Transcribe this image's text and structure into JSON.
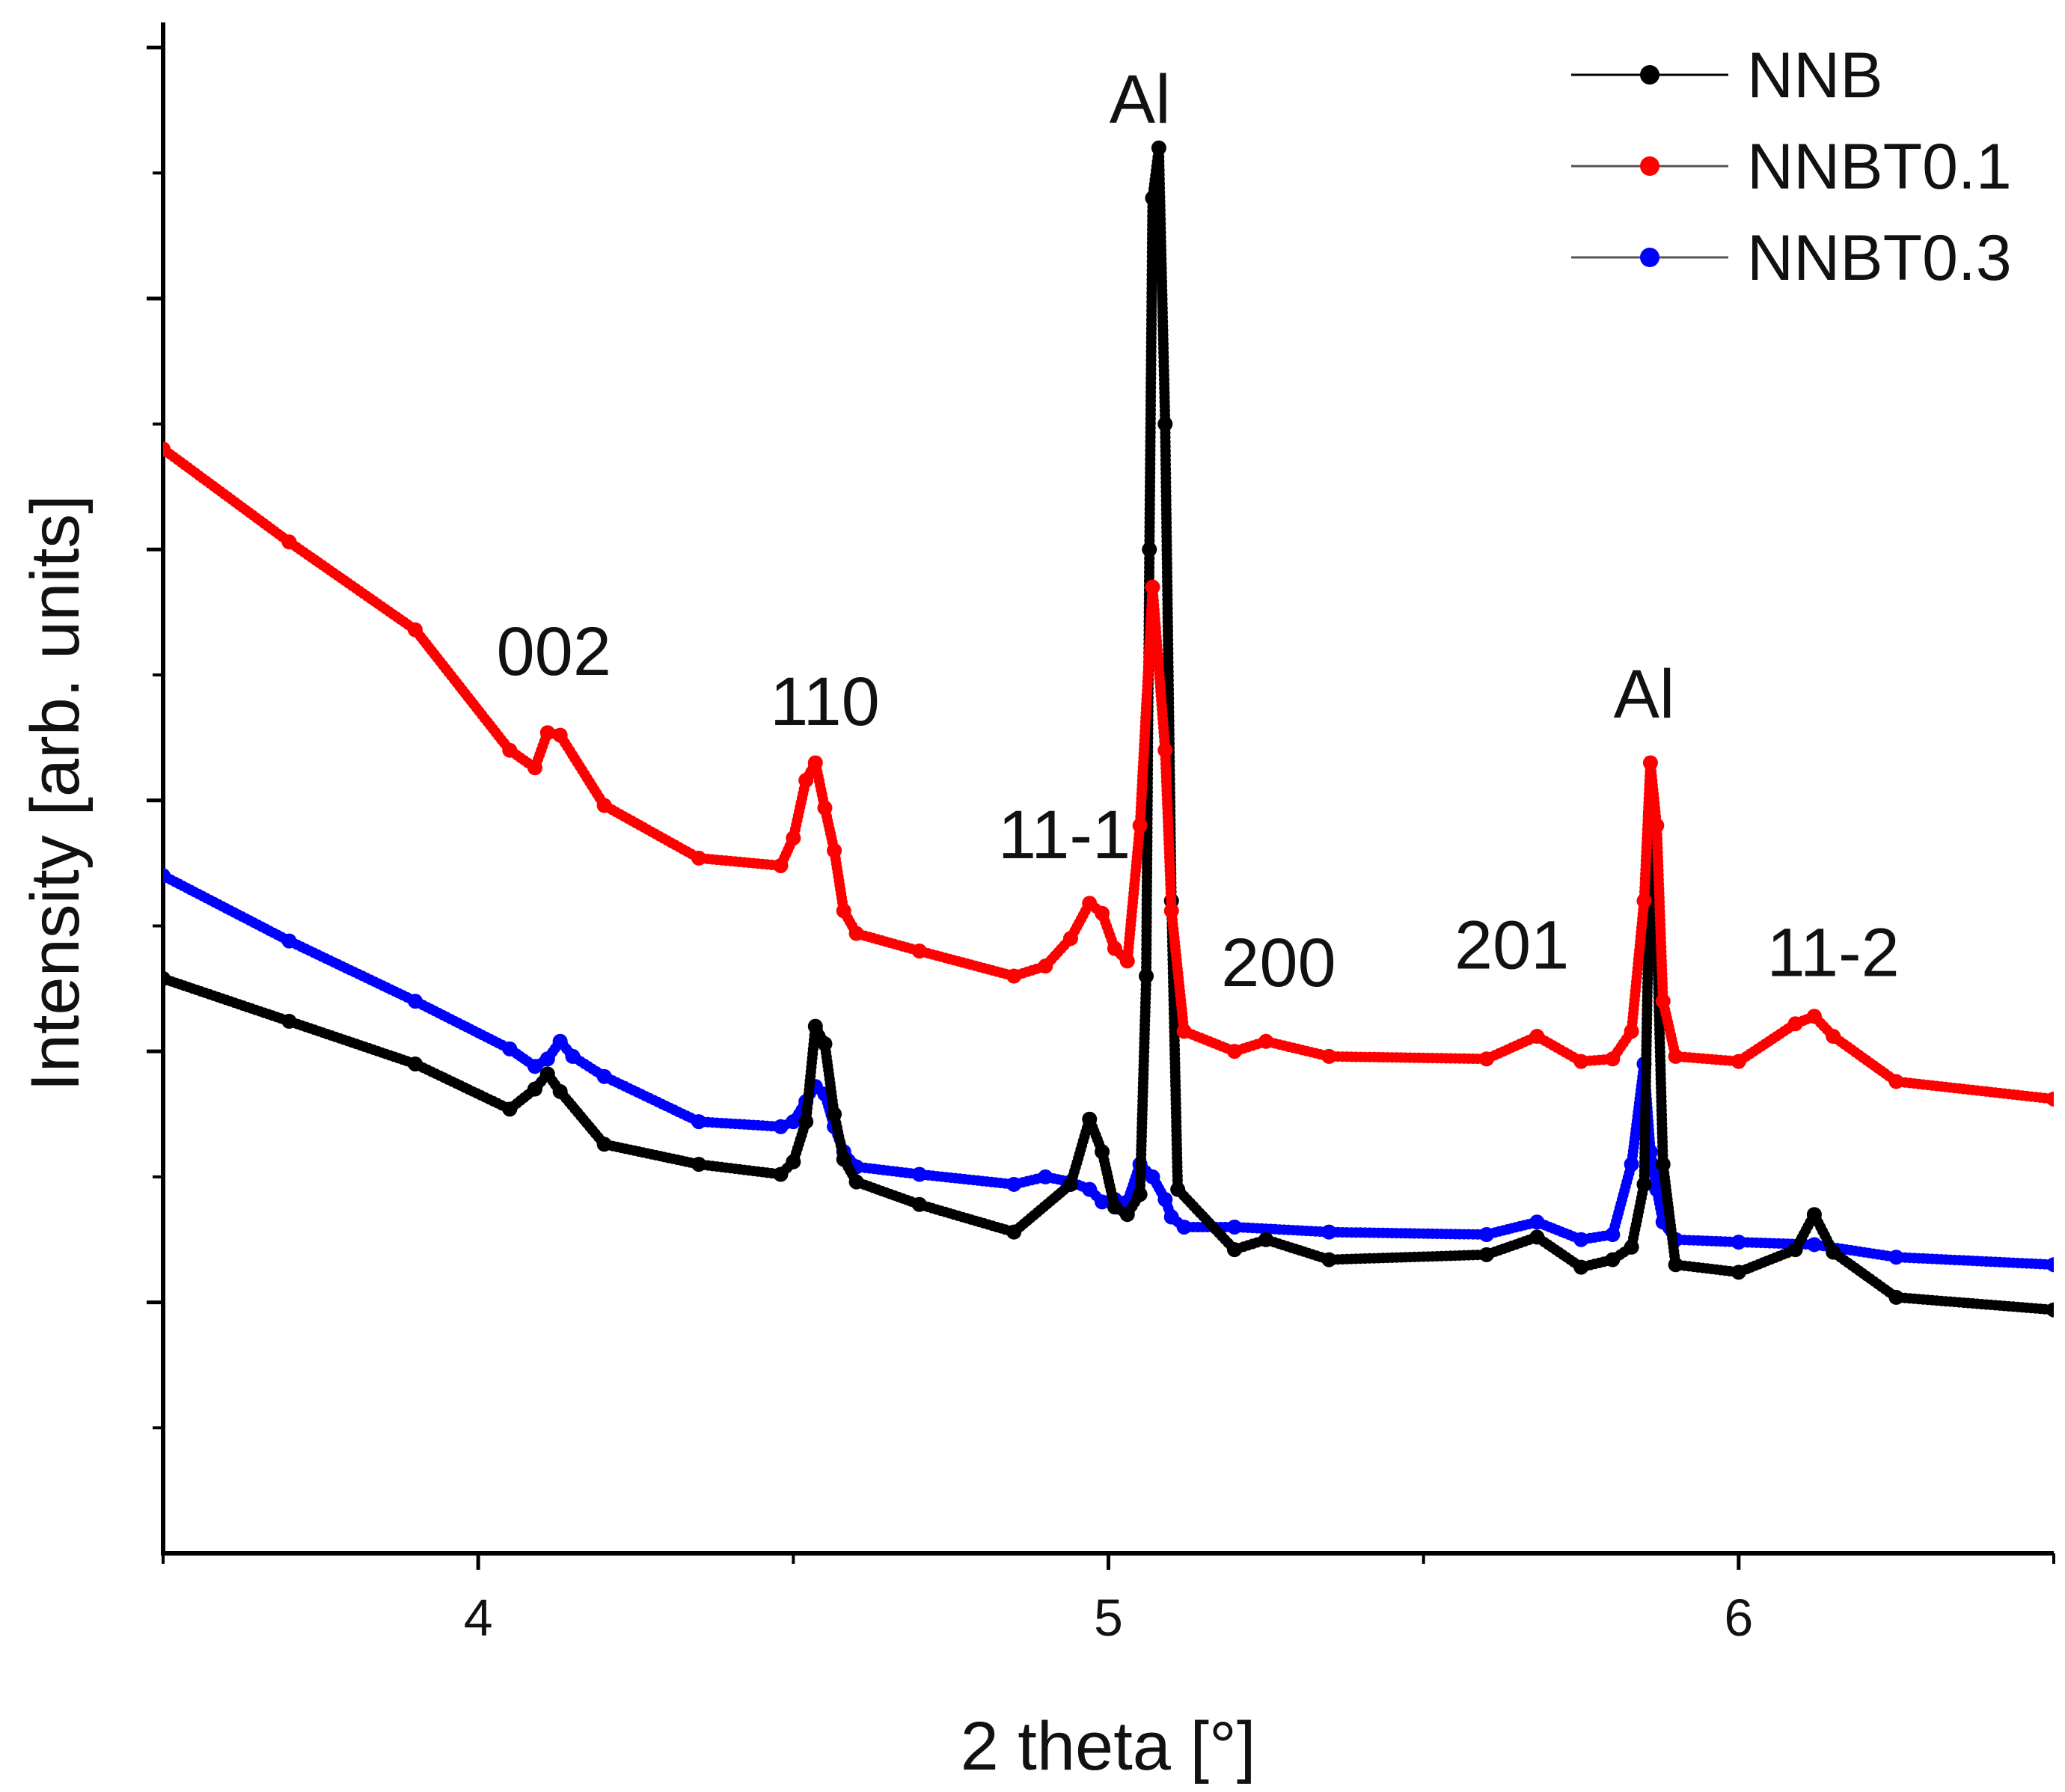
{
  "chart_data": {
    "type": "scatter",
    "title": "",
    "xlabel": "2 theta [°]",
    "ylabel": "Intensity [arb. units]",
    "xlim": [
      3.5,
      6.5
    ],
    "ylim": [
      0,
      6.1
    ],
    "x_ticks": [
      4,
      5,
      6
    ],
    "x_minor_ticks": [
      4.5,
      5.5
    ],
    "y_tick_labels_shown": false,
    "y_ticks": [
      1,
      2,
      3,
      4,
      5,
      6
    ],
    "grid": false,
    "legend_position": "top-right",
    "series": [
      {
        "name": "NNB",
        "color": "#000000",
        "marker": "circle",
        "x": [
          3.5,
          3.7,
          3.9,
          4.05,
          4.09,
          4.11,
          4.13,
          4.2,
          4.35,
          4.48,
          4.5,
          4.52,
          4.535,
          4.55,
          4.565,
          4.58,
          4.6,
          4.7,
          4.85,
          4.94,
          4.97,
          4.99,
          5.01,
          5.03,
          5.05,
          5.06,
          5.065,
          5.07,
          5.08,
          5.09,
          5.1,
          5.11,
          5.2,
          5.25,
          5.35,
          5.6,
          5.68,
          5.75,
          5.8,
          5.83,
          5.85,
          5.86,
          5.87,
          5.88,
          5.9,
          6.0,
          6.09,
          6.12,
          6.15,
          6.25,
          6.5
        ],
        "y": [
          2.29,
          2.12,
          1.95,
          1.77,
          1.85,
          1.91,
          1.84,
          1.63,
          1.55,
          1.51,
          1.56,
          1.72,
          2.1,
          2.03,
          1.75,
          1.57,
          1.48,
          1.39,
          1.28,
          1.47,
          1.73,
          1.6,
          1.38,
          1.35,
          1.43,
          2.3,
          4.0,
          5.4,
          5.6,
          4.5,
          2.6,
          1.45,
          1.21,
          1.25,
          1.17,
          1.19,
          1.26,
          1.14,
          1.17,
          1.22,
          1.47,
          2.95,
          2.5,
          1.55,
          1.15,
          1.12,
          1.21,
          1.35,
          1.2,
          1.02,
          0.97
        ]
      },
      {
        "name": "NNBT0.1",
        "color": "#ff0000",
        "marker": "circle",
        "x": [
          3.5,
          3.7,
          3.9,
          4.05,
          4.09,
          4.11,
          4.13,
          4.2,
          4.35,
          4.48,
          4.5,
          4.52,
          4.535,
          4.55,
          4.565,
          4.58,
          4.6,
          4.7,
          4.85,
          4.9,
          4.94,
          4.97,
          4.99,
          5.01,
          5.03,
          5.05,
          5.07,
          5.09,
          5.1,
          5.12,
          5.2,
          5.25,
          5.35,
          5.6,
          5.68,
          5.75,
          5.8,
          5.83,
          5.85,
          5.86,
          5.87,
          5.88,
          5.9,
          6.0,
          6.09,
          6.12,
          6.15,
          6.25,
          6.5
        ],
        "y": [
          4.4,
          4.03,
          3.68,
          3.2,
          3.13,
          3.27,
          3.26,
          2.98,
          2.77,
          2.74,
          2.85,
          3.08,
          3.15,
          2.97,
          2.8,
          2.56,
          2.47,
          2.4,
          2.3,
          2.34,
          2.45,
          2.59,
          2.55,
          2.41,
          2.36,
          2.9,
          3.85,
          3.2,
          2.56,
          2.08,
          2.0,
          2.04,
          1.98,
          1.97,
          2.06,
          1.96,
          1.97,
          2.08,
          2.6,
          3.15,
          2.9,
          2.2,
          1.98,
          1.96,
          2.11,
          2.14,
          2.06,
          1.88,
          1.81
        ]
      },
      {
        "name": "NNBT0.3",
        "color": "#0000ff",
        "marker": "circle",
        "x": [
          3.5,
          3.7,
          3.9,
          4.05,
          4.09,
          4.11,
          4.13,
          4.15,
          4.2,
          4.35,
          4.48,
          4.5,
          4.52,
          4.535,
          4.55,
          4.565,
          4.58,
          4.6,
          4.7,
          4.85,
          4.9,
          4.94,
          4.97,
          4.99,
          5.01,
          5.03,
          5.05,
          5.07,
          5.09,
          5.1,
          5.12,
          5.2,
          5.35,
          5.6,
          5.68,
          5.75,
          5.8,
          5.83,
          5.85,
          5.86,
          5.87,
          5.88,
          5.9,
          6.0,
          6.12,
          6.25,
          6.5
        ],
        "y": [
          2.7,
          2.44,
          2.2,
          2.01,
          1.94,
          1.97,
          2.04,
          1.98,
          1.9,
          1.72,
          1.7,
          1.72,
          1.8,
          1.86,
          1.83,
          1.7,
          1.6,
          1.54,
          1.51,
          1.47,
          1.5,
          1.48,
          1.45,
          1.4,
          1.41,
          1.4,
          1.55,
          1.5,
          1.41,
          1.34,
          1.3,
          1.3,
          1.28,
          1.27,
          1.32,
          1.25,
          1.27,
          1.55,
          1.95,
          1.6,
          1.45,
          1.32,
          1.25,
          1.24,
          1.23,
          1.18,
          1.15
        ]
      }
    ],
    "annotations": [
      {
        "text": "002",
        "x": 4.12,
        "y": 3.5
      },
      {
        "text": "110",
        "x": 4.55,
        "y": 3.3
      },
      {
        "text": "Al",
        "x": 5.05,
        "y": 5.7
      },
      {
        "text": "11-1",
        "x": 4.93,
        "y": 2.77
      },
      {
        "text": "200",
        "x": 5.27,
        "y": 2.26
      },
      {
        "text": "201",
        "x": 5.64,
        "y": 2.33
      },
      {
        "text": "Al",
        "x": 5.85,
        "y": 3.33
      },
      {
        "text": "11-2",
        "x": 6.15,
        "y": 2.3
      }
    ]
  }
}
